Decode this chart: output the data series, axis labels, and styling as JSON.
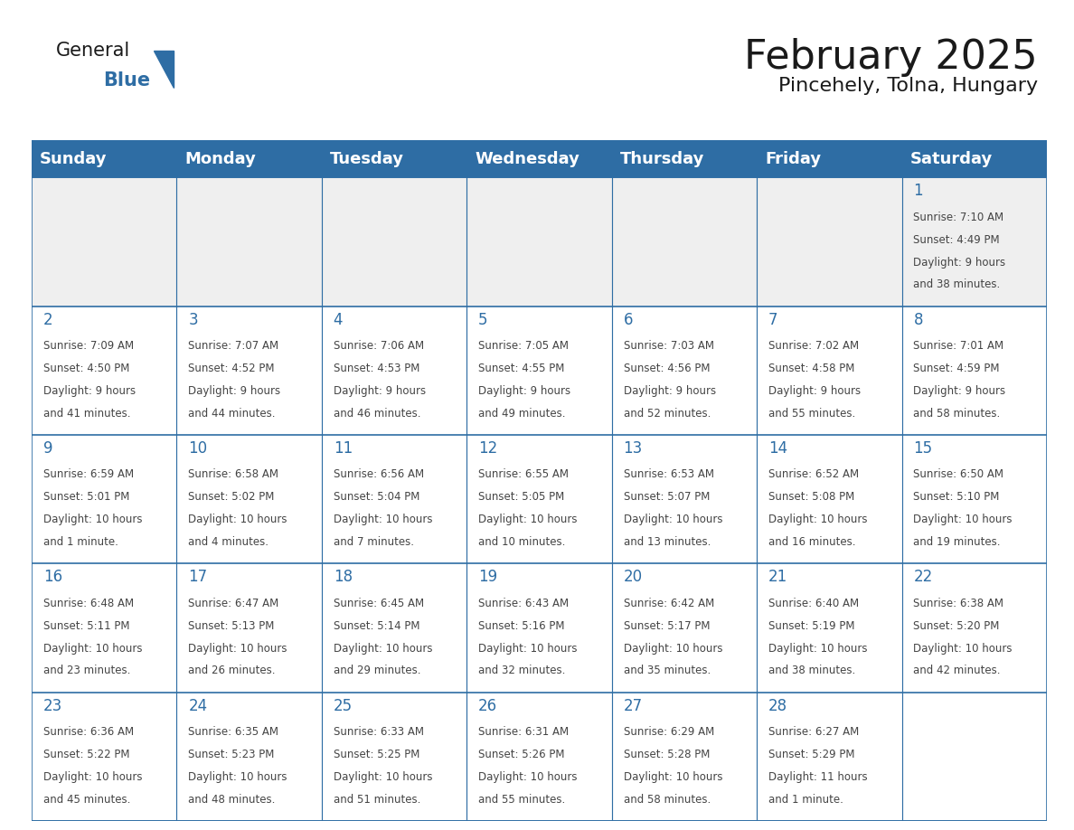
{
  "title": "February 2025",
  "subtitle": "Pincehely, Tolna, Hungary",
  "header_bg": "#2E6DA4",
  "header_text_color": "#FFFFFF",
  "week1_cell_bg": "#EFEFEF",
  "cell_bg": "#FFFFFF",
  "day_number_color": "#2E6DA4",
  "info_text_color": "#444444",
  "border_color": "#2E6DA4",
  "days_of_week": [
    "Sunday",
    "Monday",
    "Tuesday",
    "Wednesday",
    "Thursday",
    "Friday",
    "Saturday"
  ],
  "weeks": [
    [
      {
        "day": null,
        "sunrise": null,
        "sunset": null,
        "daylight": null
      },
      {
        "day": null,
        "sunrise": null,
        "sunset": null,
        "daylight": null
      },
      {
        "day": null,
        "sunrise": null,
        "sunset": null,
        "daylight": null
      },
      {
        "day": null,
        "sunrise": null,
        "sunset": null,
        "daylight": null
      },
      {
        "day": null,
        "sunrise": null,
        "sunset": null,
        "daylight": null
      },
      {
        "day": null,
        "sunrise": null,
        "sunset": null,
        "daylight": null
      },
      {
        "day": 1,
        "sunrise": "7:10 AM",
        "sunset": "4:49 PM",
        "daylight": "9 hours and 38 minutes."
      }
    ],
    [
      {
        "day": 2,
        "sunrise": "7:09 AM",
        "sunset": "4:50 PM",
        "daylight": "9 hours and 41 minutes."
      },
      {
        "day": 3,
        "sunrise": "7:07 AM",
        "sunset": "4:52 PM",
        "daylight": "9 hours and 44 minutes."
      },
      {
        "day": 4,
        "sunrise": "7:06 AM",
        "sunset": "4:53 PM",
        "daylight": "9 hours and 46 minutes."
      },
      {
        "day": 5,
        "sunrise": "7:05 AM",
        "sunset": "4:55 PM",
        "daylight": "9 hours and 49 minutes."
      },
      {
        "day": 6,
        "sunrise": "7:03 AM",
        "sunset": "4:56 PM",
        "daylight": "9 hours and 52 minutes."
      },
      {
        "day": 7,
        "sunrise": "7:02 AM",
        "sunset": "4:58 PM",
        "daylight": "9 hours and 55 minutes."
      },
      {
        "day": 8,
        "sunrise": "7:01 AM",
        "sunset": "4:59 PM",
        "daylight": "9 hours and 58 minutes."
      }
    ],
    [
      {
        "day": 9,
        "sunrise": "6:59 AM",
        "sunset": "5:01 PM",
        "daylight": "10 hours and 1 minute."
      },
      {
        "day": 10,
        "sunrise": "6:58 AM",
        "sunset": "5:02 PM",
        "daylight": "10 hours and 4 minutes."
      },
      {
        "day": 11,
        "sunrise": "6:56 AM",
        "sunset": "5:04 PM",
        "daylight": "10 hours and 7 minutes."
      },
      {
        "day": 12,
        "sunrise": "6:55 AM",
        "sunset": "5:05 PM",
        "daylight": "10 hours and 10 minutes."
      },
      {
        "day": 13,
        "sunrise": "6:53 AM",
        "sunset": "5:07 PM",
        "daylight": "10 hours and 13 minutes."
      },
      {
        "day": 14,
        "sunrise": "6:52 AM",
        "sunset": "5:08 PM",
        "daylight": "10 hours and 16 minutes."
      },
      {
        "day": 15,
        "sunrise": "6:50 AM",
        "sunset": "5:10 PM",
        "daylight": "10 hours and 19 minutes."
      }
    ],
    [
      {
        "day": 16,
        "sunrise": "6:48 AM",
        "sunset": "5:11 PM",
        "daylight": "10 hours and 23 minutes."
      },
      {
        "day": 17,
        "sunrise": "6:47 AM",
        "sunset": "5:13 PM",
        "daylight": "10 hours and 26 minutes."
      },
      {
        "day": 18,
        "sunrise": "6:45 AM",
        "sunset": "5:14 PM",
        "daylight": "10 hours and 29 minutes."
      },
      {
        "day": 19,
        "sunrise": "6:43 AM",
        "sunset": "5:16 PM",
        "daylight": "10 hours and 32 minutes."
      },
      {
        "day": 20,
        "sunrise": "6:42 AM",
        "sunset": "5:17 PM",
        "daylight": "10 hours and 35 minutes."
      },
      {
        "day": 21,
        "sunrise": "6:40 AM",
        "sunset": "5:19 PM",
        "daylight": "10 hours and 38 minutes."
      },
      {
        "day": 22,
        "sunrise": "6:38 AM",
        "sunset": "5:20 PM",
        "daylight": "10 hours and 42 minutes."
      }
    ],
    [
      {
        "day": 23,
        "sunrise": "6:36 AM",
        "sunset": "5:22 PM",
        "daylight": "10 hours and 45 minutes."
      },
      {
        "day": 24,
        "sunrise": "6:35 AM",
        "sunset": "5:23 PM",
        "daylight": "10 hours and 48 minutes."
      },
      {
        "day": 25,
        "sunrise": "6:33 AM",
        "sunset": "5:25 PM",
        "daylight": "10 hours and 51 minutes."
      },
      {
        "day": 26,
        "sunrise": "6:31 AM",
        "sunset": "5:26 PM",
        "daylight": "10 hours and 55 minutes."
      },
      {
        "day": 27,
        "sunrise": "6:29 AM",
        "sunset": "5:28 PM",
        "daylight": "10 hours and 58 minutes."
      },
      {
        "day": 28,
        "sunrise": "6:27 AM",
        "sunset": "5:29 PM",
        "daylight": "11 hours and 1 minute."
      },
      {
        "day": null,
        "sunrise": null,
        "sunset": null,
        "daylight": null
      }
    ]
  ],
  "logo_text_general": "General",
  "logo_text_blue": "Blue",
  "logo_color_general": "#1a1a1a",
  "logo_color_blue": "#2E6DA4",
  "logo_triangle_color": "#2E6DA4",
  "title_fontsize": 32,
  "subtitle_fontsize": 16,
  "day_number_fontsize": 12,
  "info_fontsize": 8.5,
  "header_fontsize": 13
}
